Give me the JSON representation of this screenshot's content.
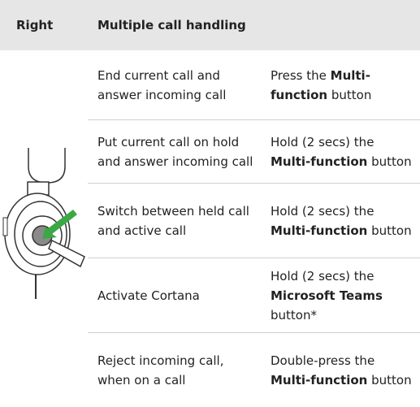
{
  "header": {
    "side": "Right",
    "title": "Multiple call handling"
  },
  "table": {
    "rows": [
      {
        "situation": "End current call and answer incoming call",
        "action": [
          {
            "text": "Press the ",
            "bold": false
          },
          {
            "text": "Multi-function",
            "bold": true
          },
          {
            "text": " button",
            "bold": false
          }
        ]
      },
      {
        "situation": "Put current call on hold and answer incoming call",
        "action": [
          {
            "text": "Hold (2 secs) the ",
            "bold": false
          },
          {
            "text": "Multi-function",
            "bold": true
          },
          {
            "text": " button",
            "bold": false
          }
        ]
      },
      {
        "situation": "Switch between held call and active call",
        "action": [
          {
            "text": "Hold (2 secs) the ",
            "bold": false
          },
          {
            "text": "Multi-function",
            "bold": true
          },
          {
            "text": " button",
            "bold": false
          }
        ]
      },
      {
        "situation": "Activate Cortana",
        "action": [
          {
            "text": "Hold (2 secs) the ",
            "bold": false
          },
          {
            "text": "Microsoft Teams",
            "bold": true
          },
          {
            "text": " button*",
            "bold": false
          }
        ]
      },
      {
        "situation": "Reject incoming call, when on a call",
        "action": [
          {
            "text": "Double-press the ",
            "bold": false
          },
          {
            "text": "Multi-function",
            "bold": true
          },
          {
            "text": " button",
            "bold": false
          }
        ]
      }
    ]
  }
}
